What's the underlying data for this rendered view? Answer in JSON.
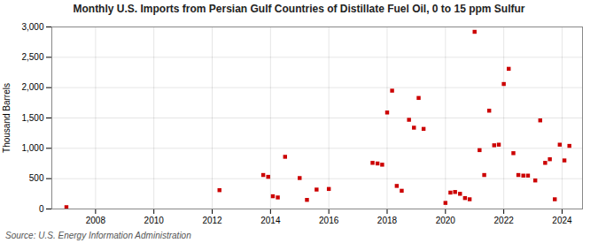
{
  "chart_data": {
    "type": "scatter",
    "title": "Monthly U.S. Imports from Persian Gulf Countries of Distillate Fuel Oil, 0 to 15 ppm Sulfur",
    "ylabel": "Thousand Barrels",
    "source": "Source: U.S. Energy Information Administration",
    "color": "#cc0000",
    "marker": "square",
    "grid": true,
    "xlim": [
      2006.5,
      2024.7
    ],
    "ylim": [
      0,
      3000
    ],
    "xticks": [
      2008,
      2010,
      2012,
      2014,
      2016,
      2018,
      2020,
      2022,
      2024
    ],
    "yticks": [
      0,
      500,
      {
        "value": 1000,
        "label": "1,000"
      },
      {
        "value": 1500,
        "label": "1,500"
      },
      {
        "value": 2000,
        "label": "2,000"
      },
      {
        "value": 2500,
        "label": "2,500"
      },
      {
        "value": 3000,
        "label": "3,000"
      }
    ],
    "x": [
      2007.0,
      2012.25,
      2013.75,
      2013.92,
      2014.08,
      2014.25,
      2014.5,
      2015.0,
      2015.25,
      2015.58,
      2016.0,
      2017.5,
      2017.67,
      2017.83,
      2018.0,
      2018.17,
      2018.33,
      2018.5,
      2018.75,
      2018.92,
      2019.08,
      2019.25,
      2020.0,
      2020.17,
      2020.33,
      2020.5,
      2020.67,
      2020.83,
      2021.0,
      2021.17,
      2021.33,
      2021.5,
      2021.67,
      2021.83,
      2022.0,
      2022.17,
      2022.33,
      2022.5,
      2022.67,
      2022.83,
      2023.08,
      2023.25,
      2023.42,
      2023.58,
      2023.75,
      2023.92,
      2024.08,
      2024.25
    ],
    "values": [
      30,
      310,
      560,
      530,
      210,
      190,
      860,
      510,
      150,
      320,
      330,
      760,
      750,
      730,
      1590,
      1950,
      380,
      300,
      1470,
      1340,
      1830,
      1320,
      100,
      270,
      280,
      250,
      180,
      160,
      2920,
      970,
      560,
      1620,
      1050,
      1060,
      2060,
      2310,
      920,
      560,
      550,
      550,
      470,
      1460,
      760,
      820,
      160,
      1060,
      800,
      1040
    ]
  }
}
